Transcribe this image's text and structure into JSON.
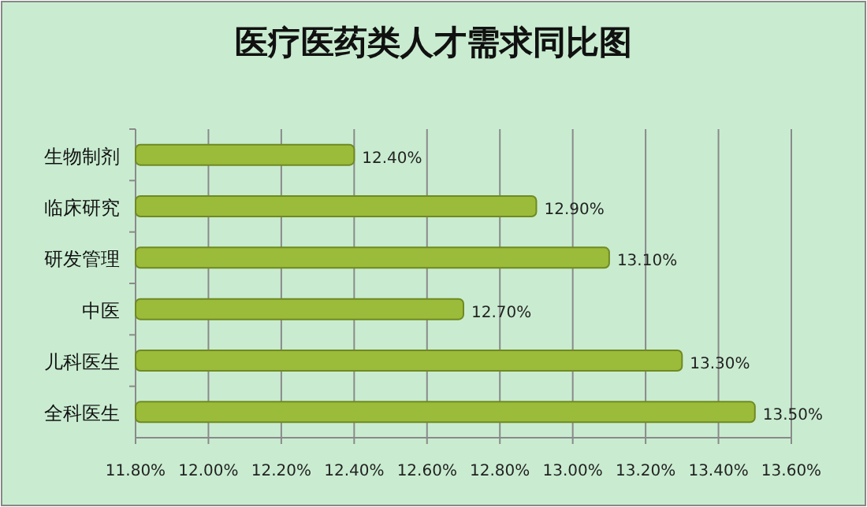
{
  "chart_data": {
    "type": "bar",
    "orientation": "horizontal",
    "title": "医疗医药类人才需求同比图",
    "categories": [
      "生物制剂",
      "临床研究",
      "研发管理",
      "中医",
      "儿科医生",
      "全科医生"
    ],
    "values": [
      12.4,
      12.9,
      13.1,
      12.7,
      13.3,
      13.5
    ],
    "value_labels": [
      "12.40%",
      "12.90%",
      "13.10%",
      "12.70%",
      "13.30%",
      "13.50%"
    ],
    "color": "#9bbb3a",
    "xlim": [
      11.8,
      13.6
    ],
    "xticks": [
      {
        "value": 11.8,
        "label": "11.80%"
      },
      {
        "value": 12.0,
        "label": "12.00%"
      },
      {
        "value": 12.2,
        "label": "12.20%"
      },
      {
        "value": 12.4,
        "label": "12.40%"
      },
      {
        "value": 12.6,
        "label": "12.60%"
      },
      {
        "value": 12.8,
        "label": "12.80%"
      },
      {
        "value": 13.0,
        "label": "13.00%"
      },
      {
        "value": 13.2,
        "label": "13.20%"
      },
      {
        "value": 13.4,
        "label": "13.40%"
      },
      {
        "value": 13.6,
        "label": "13.60%"
      }
    ],
    "grid": "x"
  }
}
